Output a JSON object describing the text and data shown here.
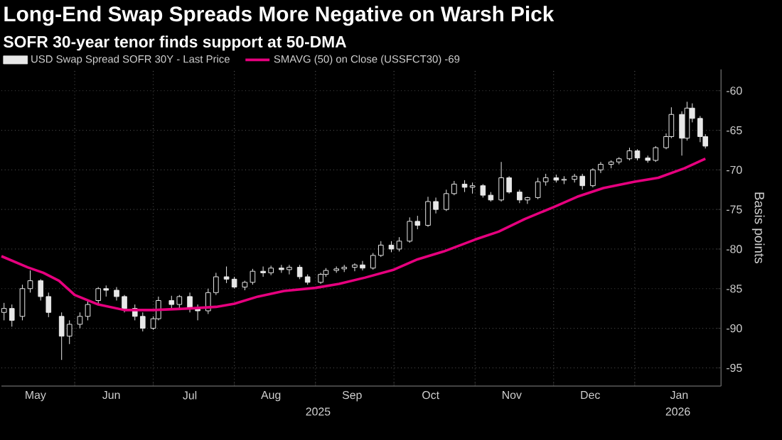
{
  "chart_data": {
    "type": "candlestick",
    "title": "Long-End Swap Spreads More Negative on Warsh Pick",
    "subtitle": "SOFR 30-year tenor finds support at 50-DMA",
    "ylabel": "Basis points",
    "xlim": [
      "2025-05-04",
      "2026-02-03"
    ],
    "xticks": [
      {
        "value": "2025-05-17",
        "label": "May"
      },
      {
        "value": "2025-06-01",
        "label": null
      },
      {
        "value": "2025-06-15",
        "label": "Jun"
      },
      {
        "value": "2025-07-01",
        "label": null
      },
      {
        "value": "2025-07-15",
        "label": "Jul"
      },
      {
        "value": "2025-08-01",
        "label": null
      },
      {
        "value": "2025-08-15",
        "label": "Aug"
      },
      {
        "value": "2025-09-01",
        "label": null
      },
      {
        "value": "2025-09-15",
        "label": "Sep"
      },
      {
        "value": "2025-10-01",
        "label": null
      },
      {
        "value": "2025-10-15",
        "label": "Oct"
      },
      {
        "value": "2025-11-01",
        "label": null
      },
      {
        "value": "2025-11-15",
        "label": "Nov"
      },
      {
        "value": "2025-12-01",
        "label": null
      },
      {
        "value": "2025-12-15",
        "label": "Dec"
      },
      {
        "value": "2026-01-01",
        "label": null
      },
      {
        "value": "2026-01-18",
        "label": "Jan"
      }
    ],
    "ylim": [
      -97.3,
      -57.3
    ],
    "yticks": [
      -60,
      -65,
      -70,
      -75,
      -80,
      -85,
      -90,
      -95
    ],
    "grid": true,
    "legend": "top left",
    "annotations": [
      "2025",
      "2026"
    ],
    "series": [
      {
        "name": "USD Swap Spread SOFR 30Y - Last Price",
        "color": "#e8e8e8",
        "x": [
          "2025-05-05",
          "2025-05-08",
          "2025-05-12",
          "2025-05-15",
          "2025-05-19",
          "2025-05-22",
          "2025-05-27",
          "2025-05-30",
          "2025-06-03",
          "2025-06-06",
          "2025-06-10",
          "2025-06-13",
          "2025-06-17",
          "2025-06-20",
          "2025-06-24",
          "2025-06-27",
          "2025-07-01",
          "2025-07-03",
          "2025-07-08",
          "2025-07-11",
          "2025-07-15",
          "2025-07-18",
          "2025-07-22",
          "2025-07-25",
          "2025-07-29",
          "2025-08-01",
          "2025-08-05",
          "2025-08-08",
          "2025-08-12",
          "2025-08-15",
          "2025-08-19",
          "2025-08-22",
          "2025-08-26",
          "2025-08-29",
          "2025-09-03",
          "2025-09-05",
          "2025-09-09",
          "2025-09-12",
          "2025-09-16",
          "2025-09-19",
          "2025-09-23",
          "2025-09-26",
          "2025-09-30",
          "2025-10-03",
          "2025-10-07",
          "2025-10-10",
          "2025-10-14",
          "2025-10-17",
          "2025-10-21",
          "2025-10-24",
          "2025-10-28",
          "2025-10-31",
          "2025-11-04",
          "2025-11-07",
          "2025-11-11",
          "2025-11-14",
          "2025-11-18",
          "2025-11-21",
          "2025-11-25",
          "2025-11-28",
          "2025-12-02",
          "2025-12-05",
          "2025-12-09",
          "2025-12-12",
          "2025-12-16",
          "2025-12-19",
          "2025-12-23",
          "2025-12-26",
          "2025-12-30",
          "2026-01-02",
          "2026-01-06",
          "2026-01-09",
          "2026-01-13",
          "2026-01-15",
          "2026-01-19",
          "2026-01-21",
          "2026-01-23",
          "2026-01-26",
          "2026-01-28"
        ],
        "ohlc": [
          [
            -88,
            -86.8,
            -89,
            -87.5
          ],
          [
            -87.5,
            -87,
            -89.8,
            -89
          ],
          [
            -88.5,
            -84.5,
            -89,
            -85
          ],
          [
            -85,
            -82.7,
            -85.5,
            -84
          ],
          [
            -84,
            -83.8,
            -86.5,
            -86
          ],
          [
            -86,
            -85.5,
            -88.6,
            -88
          ],
          [
            -88.5,
            -88,
            -94,
            -91
          ],
          [
            -91,
            -89,
            -92,
            -89.5
          ],
          [
            -89.5,
            -88,
            -90,
            -88.5
          ],
          [
            -88.5,
            -86.5,
            -89,
            -87
          ],
          [
            -86.5,
            -84.8,
            -87,
            -85
          ],
          [
            -85,
            -84.6,
            -86,
            -85.2
          ],
          [
            -85.2,
            -84.8,
            -86.5,
            -86
          ],
          [
            -86,
            -85.8,
            -88,
            -87.5
          ],
          [
            -87.5,
            -87,
            -89,
            -88.5
          ],
          [
            -88.5,
            -88,
            -90.4,
            -90
          ],
          [
            -90,
            -88.5,
            -90.2,
            -88.8
          ],
          [
            -88.8,
            -86,
            -89,
            -86.5
          ],
          [
            -86.5,
            -85.9,
            -87.5,
            -87
          ],
          [
            -87,
            -85.8,
            -87.5,
            -86
          ],
          [
            -86,
            -85.5,
            -88,
            -87.5
          ],
          [
            -87.5,
            -87,
            -89,
            -87.8
          ],
          [
            -87.8,
            -85,
            -88.2,
            -85.5
          ],
          [
            -85.5,
            -83,
            -85.8,
            -83.5
          ],
          [
            -83.5,
            -82.2,
            -84.3,
            -83.8
          ],
          [
            -83.8,
            -83.5,
            -85,
            -84.8
          ],
          [
            -84.8,
            -84,
            -85.2,
            -84.2
          ],
          [
            -84.2,
            -82.5,
            -84.5,
            -82.8
          ],
          [
            -82.8,
            -82.2,
            -83.5,
            -83
          ],
          [
            -83,
            -82.1,
            -83.3,
            -82.4
          ],
          [
            -82.4,
            -82,
            -83,
            -82.6
          ],
          [
            -82.6,
            -82,
            -83.2,
            -82.3
          ],
          [
            -82.3,
            -82,
            -83.8,
            -83.5
          ],
          [
            -83.5,
            -83.2,
            -84.5,
            -84.2
          ],
          [
            -84.2,
            -83,
            -84.4,
            -83.2
          ],
          [
            -83.2,
            -82.4,
            -83.5,
            -82.7
          ],
          [
            -82.7,
            -82.2,
            -83,
            -82.5
          ],
          [
            -82.5,
            -82,
            -82.9,
            -82.3
          ],
          [
            -82.3,
            -81.8,
            -82.8,
            -82
          ],
          [
            -82,
            -81.5,
            -82.7,
            -82.4
          ],
          [
            -82.4,
            -80.5,
            -82.6,
            -80.8
          ],
          [
            -80.8,
            -79,
            -81,
            -79.5
          ],
          [
            -79.5,
            -79,
            -80.4,
            -80
          ],
          [
            -80,
            -78.5,
            -80.3,
            -79
          ],
          [
            -79,
            -76,
            -79.2,
            -76.5
          ],
          [
            -76.5,
            -75.8,
            -77.5,
            -77
          ],
          [
            -77,
            -73.4,
            -77.2,
            -74
          ],
          [
            -74,
            -73.5,
            -75.5,
            -75
          ],
          [
            -75,
            -72.5,
            -75.2,
            -73
          ],
          [
            -73,
            -71.4,
            -73.2,
            -71.8
          ],
          [
            -71.8,
            -71.3,
            -72.8,
            -72.2
          ],
          [
            -72.2,
            -71.6,
            -73,
            -72
          ],
          [
            -72,
            -71.8,
            -73.5,
            -73.2
          ],
          [
            -73.2,
            -72.8,
            -74,
            -73.8
          ],
          [
            -73.8,
            -69,
            -74,
            -71
          ],
          [
            -71,
            -70.8,
            -73,
            -72.8
          ],
          [
            -72.8,
            -72.5,
            -74.2,
            -73.8
          ],
          [
            -73.8,
            -73.4,
            -74.3,
            -73.5
          ],
          [
            -73.5,
            -71,
            -73.7,
            -71.5
          ],
          [
            -71.5,
            -70.5,
            -72,
            -71
          ],
          [
            -71,
            -70.6,
            -71.6,
            -71.3
          ],
          [
            -71.3,
            -70.8,
            -71.8,
            -71.2
          ],
          [
            -71.2,
            -70.5,
            -71.6,
            -70.8
          ],
          [
            -70.8,
            -70.5,
            -72.5,
            -72
          ],
          [
            -72,
            -69.8,
            -72.2,
            -70
          ],
          [
            -70,
            -69,
            -70.4,
            -69.3
          ],
          [
            -69.3,
            -68.8,
            -69.8,
            -69
          ],
          [
            -69,
            -68.4,
            -69.3,
            -68.6
          ],
          [
            -68.6,
            -67.2,
            -68.8,
            -67.6
          ],
          [
            -67.6,
            -67.4,
            -68.8,
            -68.5
          ],
          [
            -68.5,
            -68.2,
            -69.1,
            -68.8
          ],
          [
            -68.8,
            -67,
            -69,
            -67.2
          ],
          [
            -67.2,
            -65.4,
            -67.4,
            -65.8
          ],
          [
            -65.8,
            -62.1,
            -66,
            -63
          ],
          [
            -63,
            -62.6,
            -68.2,
            -66
          ],
          [
            -66,
            -61.4,
            -66.3,
            -62.2
          ],
          [
            -62.2,
            -61.6,
            -64,
            -63.5
          ],
          [
            -63.5,
            -63.2,
            -66.5,
            -65.8
          ],
          [
            -65.8,
            -65.5,
            -67.3,
            -67
          ]
        ]
      },
      {
        "name": "SMAVG (50)  on Close (USSFCT30) -69",
        "type": "line",
        "color": "#e6007e",
        "x": [
          "2025-05-04",
          "2025-05-14",
          "2025-05-20",
          "2025-05-26",
          "2025-06-01",
          "2025-06-10",
          "2025-06-20",
          "2025-07-01",
          "2025-07-15",
          "2025-07-25",
          "2025-08-01",
          "2025-08-10",
          "2025-08-20",
          "2025-09-01",
          "2025-09-10",
          "2025-09-20",
          "2025-10-01",
          "2025-10-10",
          "2025-10-20",
          "2025-11-01",
          "2025-11-10",
          "2025-11-20",
          "2025-12-01",
          "2025-12-10",
          "2025-12-20",
          "2026-01-01",
          "2026-01-10",
          "2026-01-20",
          "2026-01-28"
        ],
        "values": [
          -80.9,
          -82.3,
          -83,
          -84,
          -85.8,
          -87,
          -87.7,
          -87.7,
          -87.5,
          -87.3,
          -86.9,
          -86,
          -85.3,
          -84.9,
          -84.4,
          -83.6,
          -82.6,
          -81.3,
          -80.3,
          -78.8,
          -77.8,
          -76.2,
          -74.7,
          -73.4,
          -72.3,
          -71.5,
          -71,
          -69.8,
          -68.6
        ]
      }
    ]
  }
}
